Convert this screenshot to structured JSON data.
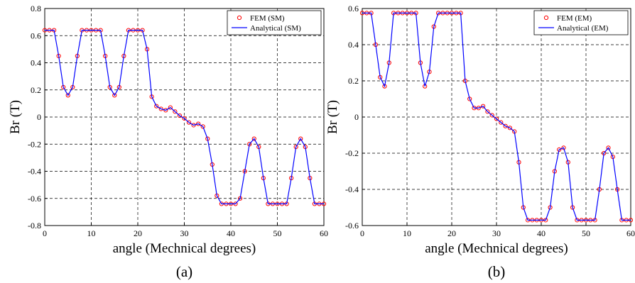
{
  "chart_data": [
    {
      "type": "line",
      "caption": "(a)",
      "x_label": "angle (Mechnical degrees)",
      "y_label": "Br (T)",
      "xlim": [
        0,
        60
      ],
      "xticks": [
        0,
        10,
        20,
        30,
        40,
        50,
        60
      ],
      "ylim": [
        -0.8,
        0.8
      ],
      "yticks": [
        -0.8,
        -0.6,
        -0.4,
        -0.2,
        0,
        0.2,
        0.4,
        0.6,
        0.8
      ],
      "grid": true,
      "legend": "upper right",
      "x": [
        0,
        1,
        2,
        3,
        4,
        5,
        6,
        7,
        8,
        9,
        10,
        11,
        12,
        13,
        14,
        15,
        16,
        17,
        18,
        19,
        20,
        21,
        22,
        23,
        24,
        25,
        26,
        27,
        28,
        29,
        30,
        31,
        32,
        33,
        34,
        35,
        36,
        37,
        38,
        39,
        40,
        41,
        42,
        43,
        44,
        45,
        46,
        47,
        48,
        49,
        50,
        51,
        52,
        53,
        54,
        55,
        56,
        57,
        58,
        59,
        60
      ],
      "series": [
        {
          "name": "FEM (SM)",
          "color": "#ff0000",
          "mode": "markers",
          "values": [
            0.64,
            0.64,
            0.64,
            0.45,
            0.22,
            0.16,
            0.22,
            0.45,
            0.64,
            0.64,
            0.64,
            0.64,
            0.64,
            0.45,
            0.22,
            0.16,
            0.22,
            0.45,
            0.64,
            0.64,
            0.64,
            0.64,
            0.5,
            0.15,
            0.08,
            0.06,
            0.05,
            0.07,
            0.04,
            0.01,
            -0.01,
            -0.04,
            -0.06,
            -0.05,
            -0.07,
            -0.16,
            -0.35,
            -0.58,
            -0.64,
            -0.64,
            -0.64,
            -0.64,
            -0.6,
            -0.4,
            -0.2,
            -0.16,
            -0.22,
            -0.45,
            -0.64,
            -0.64,
            -0.64,
            -0.64,
            -0.64,
            -0.45,
            -0.22,
            -0.16,
            -0.22,
            -0.45,
            -0.64,
            -0.64,
            -0.64
          ]
        },
        {
          "name": "Analytical (SM)",
          "color": "#0000ff",
          "mode": "line",
          "values": [
            0.64,
            0.64,
            0.64,
            0.45,
            0.22,
            0.16,
            0.22,
            0.45,
            0.64,
            0.64,
            0.64,
            0.64,
            0.64,
            0.45,
            0.22,
            0.16,
            0.22,
            0.45,
            0.64,
            0.64,
            0.64,
            0.64,
            0.5,
            0.15,
            0.08,
            0.06,
            0.05,
            0.07,
            0.04,
            0.01,
            -0.01,
            -0.04,
            -0.06,
            -0.05,
            -0.07,
            -0.16,
            -0.35,
            -0.58,
            -0.64,
            -0.64,
            -0.64,
            -0.64,
            -0.6,
            -0.4,
            -0.2,
            -0.16,
            -0.22,
            -0.45,
            -0.64,
            -0.64,
            -0.64,
            -0.64,
            -0.64,
            -0.45,
            -0.22,
            -0.16,
            -0.22,
            -0.45,
            -0.64,
            -0.64,
            -0.64
          ]
        }
      ]
    },
    {
      "type": "line",
      "caption": "(b)",
      "x_label": "angle (Mechnical degrees)",
      "y_label": "Br (T)",
      "xlim": [
        0,
        60
      ],
      "xticks": [
        0,
        10,
        20,
        30,
        40,
        50,
        60
      ],
      "ylim": [
        -0.6,
        0.6
      ],
      "yticks": [
        -0.6,
        -0.4,
        -0.2,
        0,
        0.2,
        0.4,
        0.6
      ],
      "grid": true,
      "legend": "upper right",
      "x": [
        0,
        1,
        2,
        3,
        4,
        5,
        6,
        7,
        8,
        9,
        10,
        11,
        12,
        13,
        14,
        15,
        16,
        17,
        18,
        19,
        20,
        21,
        22,
        23,
        24,
        25,
        26,
        27,
        28,
        29,
        30,
        31,
        32,
        33,
        34,
        35,
        36,
        37,
        38,
        39,
        40,
        41,
        42,
        43,
        44,
        45,
        46,
        47,
        48,
        49,
        50,
        51,
        52,
        53,
        54,
        55,
        56,
        57,
        58,
        59,
        60
      ],
      "series": [
        {
          "name": "FEM (EM)",
          "color": "#ff0000",
          "mode": "markers",
          "values": [
            0.575,
            0.575,
            0.575,
            0.4,
            0.22,
            0.17,
            0.3,
            0.575,
            0.575,
            0.575,
            0.575,
            0.575,
            0.575,
            0.3,
            0.17,
            0.25,
            0.5,
            0.575,
            0.575,
            0.575,
            0.575,
            0.575,
            0.575,
            0.2,
            0.1,
            0.05,
            0.05,
            0.06,
            0.03,
            0.01,
            -0.01,
            -0.03,
            -0.05,
            -0.06,
            -0.08,
            -0.25,
            -0.5,
            -0.57,
            -0.57,
            -0.57,
            -0.57,
            -0.57,
            -0.5,
            -0.3,
            -0.18,
            -0.17,
            -0.25,
            -0.5,
            -0.57,
            -0.57,
            -0.57,
            -0.57,
            -0.57,
            -0.4,
            -0.2,
            -0.17,
            -0.22,
            -0.4,
            -0.57,
            -0.57,
            -0.57
          ]
        },
        {
          "name": "Analytical (EM)",
          "color": "#0000ff",
          "mode": "line",
          "values": [
            0.575,
            0.575,
            0.575,
            0.4,
            0.22,
            0.17,
            0.3,
            0.575,
            0.575,
            0.575,
            0.575,
            0.575,
            0.575,
            0.3,
            0.17,
            0.25,
            0.5,
            0.575,
            0.575,
            0.575,
            0.575,
            0.575,
            0.575,
            0.2,
            0.1,
            0.05,
            0.05,
            0.06,
            0.03,
            0.01,
            -0.01,
            -0.03,
            -0.05,
            -0.06,
            -0.08,
            -0.25,
            -0.5,
            -0.57,
            -0.57,
            -0.57,
            -0.57,
            -0.57,
            -0.5,
            -0.3,
            -0.18,
            -0.17,
            -0.25,
            -0.5,
            -0.57,
            -0.57,
            -0.57,
            -0.57,
            -0.57,
            -0.4,
            -0.2,
            -0.17,
            -0.22,
            -0.4,
            -0.57,
            -0.57,
            -0.57
          ]
        }
      ]
    }
  ]
}
